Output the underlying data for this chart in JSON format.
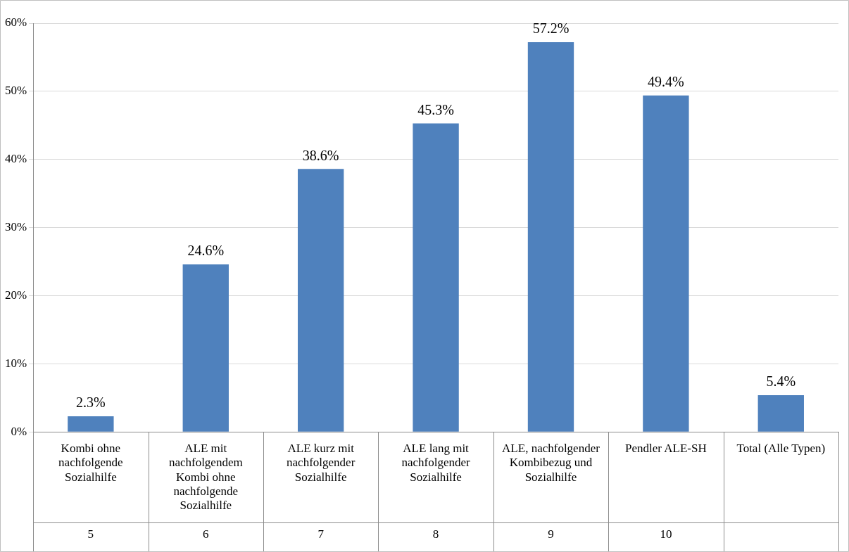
{
  "chart_data": {
    "type": "bar",
    "categories": [
      "Kombi ohne nachfolgende Sozialhilfe\n5",
      "ALE mit nachfolgendem Kombi ohne nachfolgende Sozialhilfe\n6",
      "ALE kurz mit nachfolgender Sozialhilfe\n7",
      "ALE lang mit nachfolgender Sozialhilfe\n8",
      "ALE, nachfolgender Kombibezug und  Sozialhilfe\n9",
      "Pendler ALE-SH\n10",
      "Total (Alle Typen)"
    ],
    "values": [
      2.3,
      24.6,
      38.6,
      45.3,
      57.2,
      49.4,
      5.4
    ],
    "color": "#4f81bd",
    "ylim": [
      0,
      60
    ],
    "yticks": [
      {
        "value": 0,
        "label": "0%"
      },
      {
        "value": 10,
        "label": "10%"
      },
      {
        "value": 20,
        "label": "20%"
      },
      {
        "value": 30,
        "label": "30%"
      },
      {
        "value": 40,
        "label": "40%"
      },
      {
        "value": 50,
        "label": "50%"
      },
      {
        "value": 60,
        "label": "60%"
      }
    ],
    "value_labels": [
      "2.3%",
      "24.6%",
      "38.6%",
      "45.3%",
      "57.2%",
      "49.4%",
      "5.4%"
    ],
    "grid": "y",
    "legend": false
  }
}
